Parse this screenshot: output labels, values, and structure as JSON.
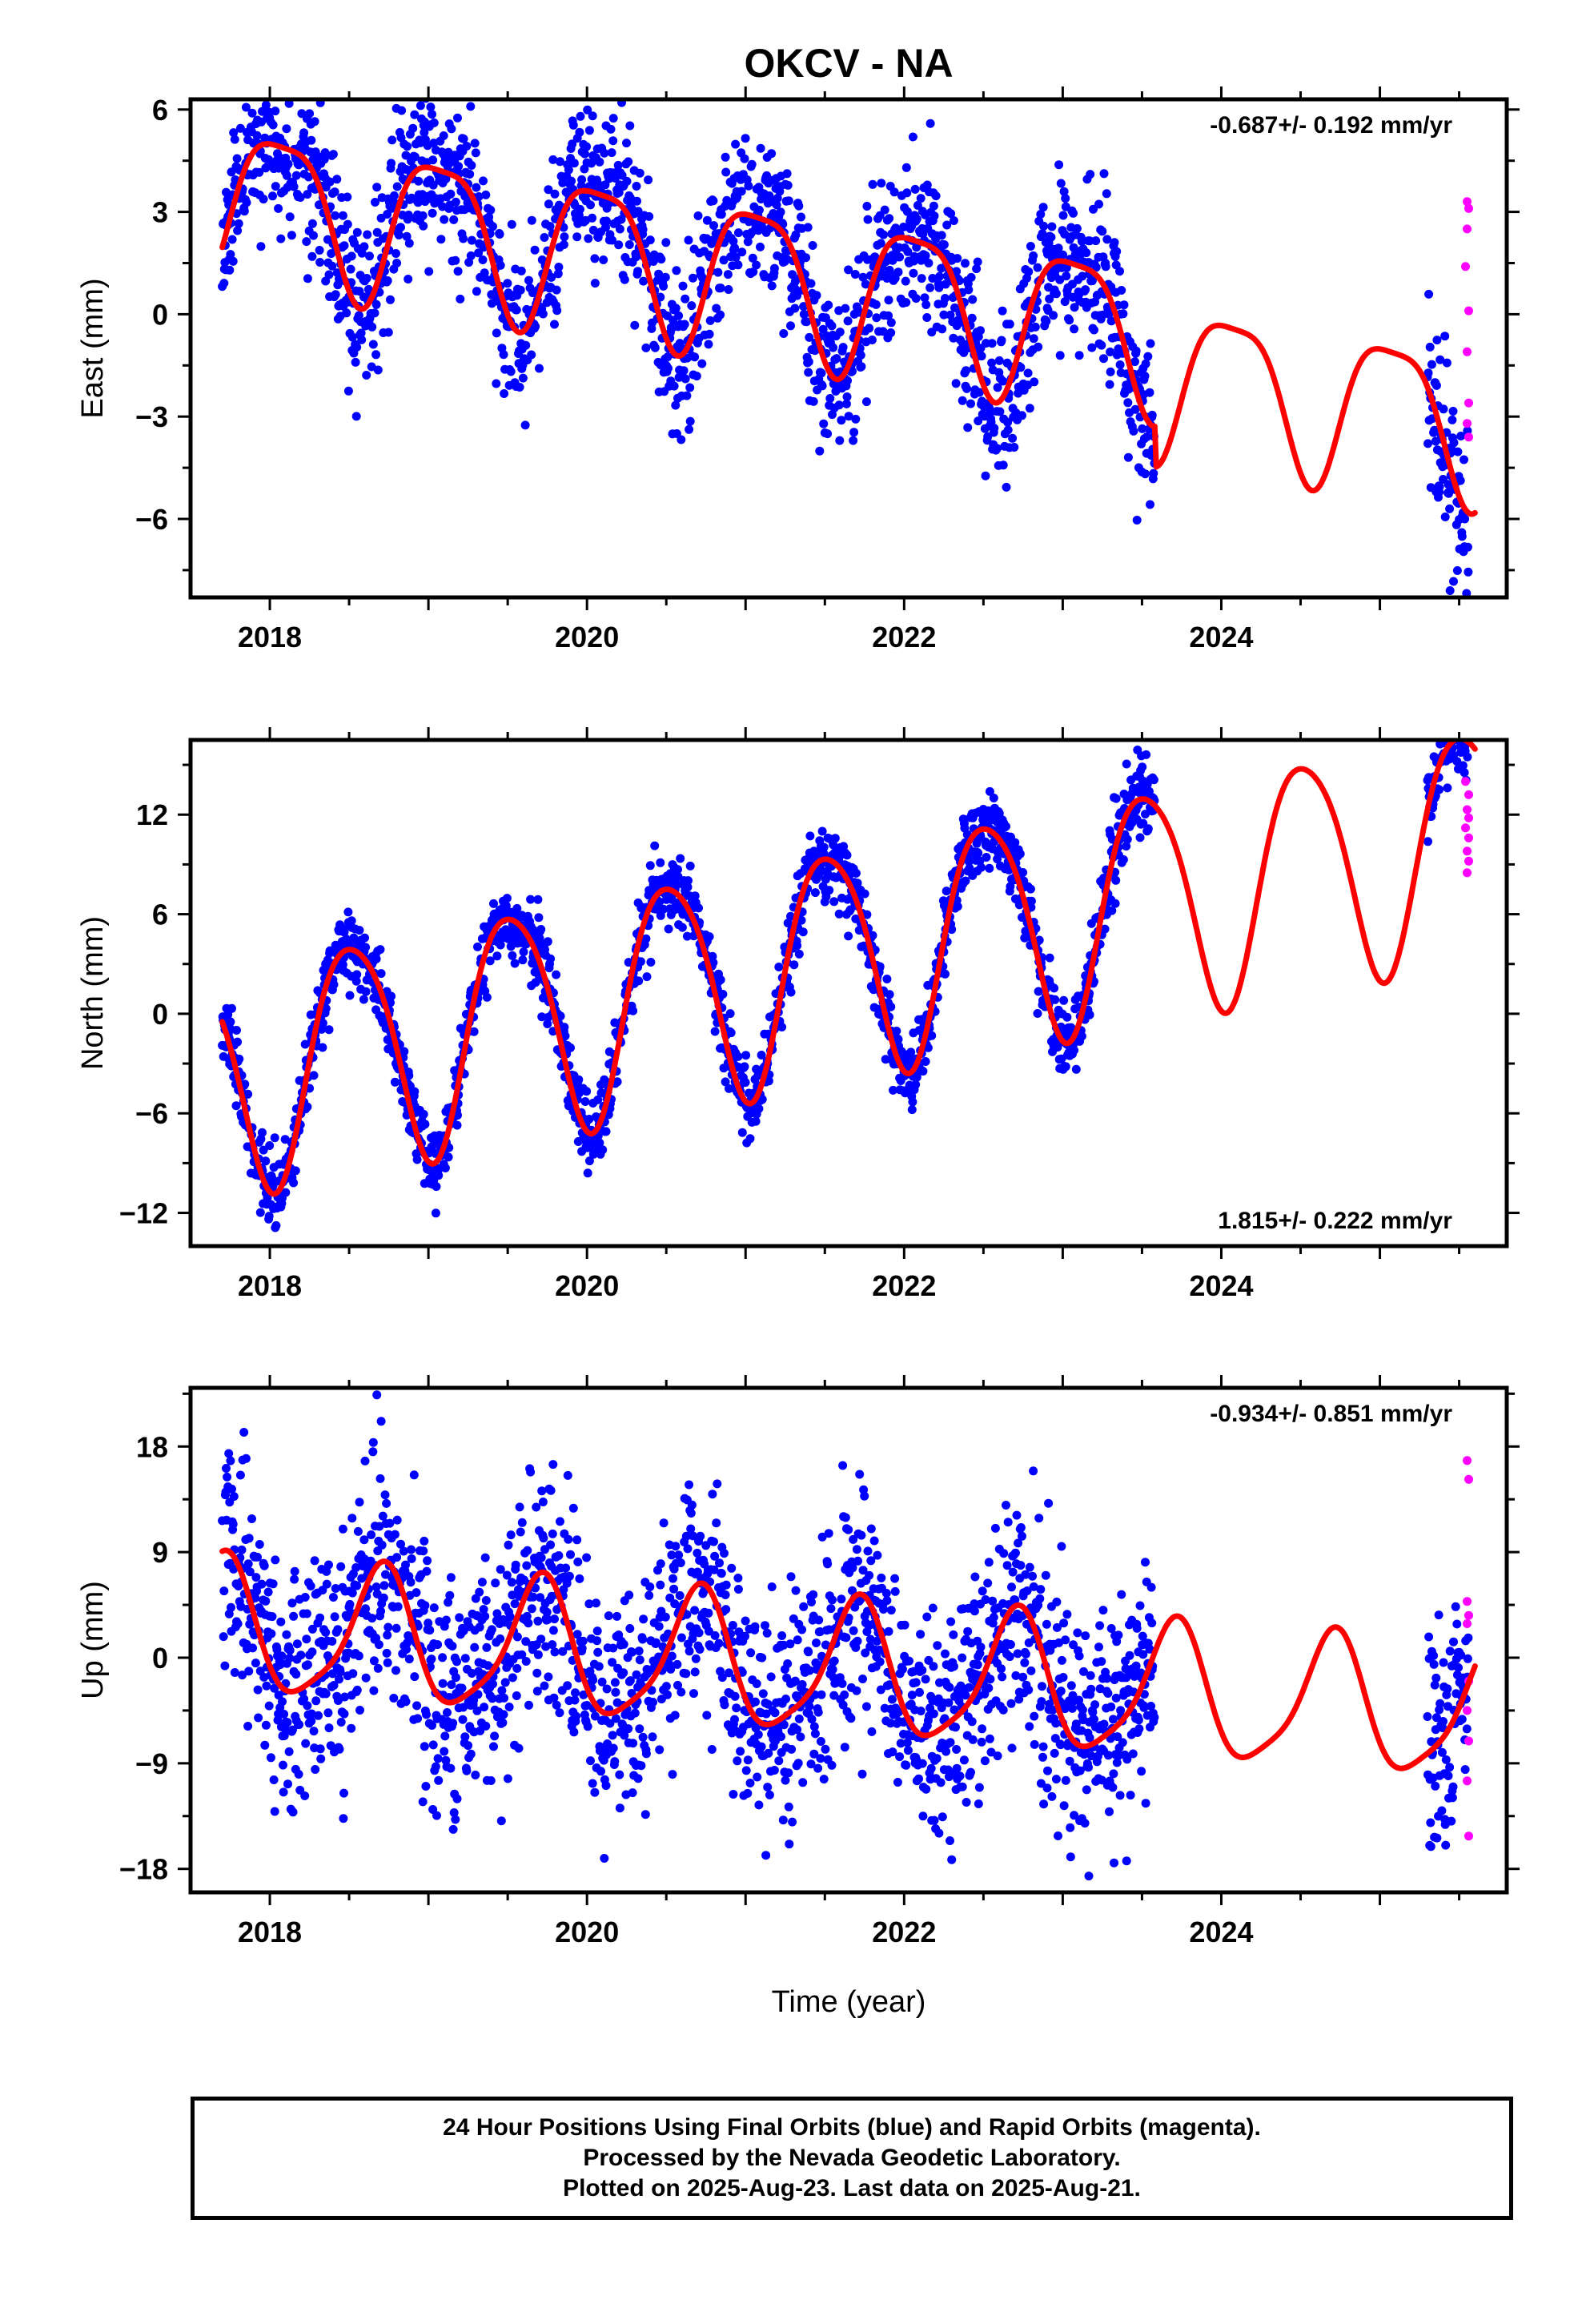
{
  "chart_data": {
    "type": "scatter",
    "title": "OKCV - NA",
    "xlabel": "Time (year)",
    "xlim": [
      2017.5,
      2025.8
    ],
    "x_ticks": [
      "2018",
      "2020",
      "2022",
      "2024"
    ],
    "colors": {
      "final": "#0000ff",
      "rapid": "#ff00ff",
      "model": "#ff0000"
    },
    "panels": [
      {
        "id": "east",
        "ylabel": "East (mm)",
        "ylim": [
          -8.3,
          6.3
        ],
        "y_ticks": [
          6,
          3,
          0,
          -3,
          -6
        ],
        "y_tick_labels": [
          "6",
          "3",
          "0",
          "−3",
          "−6"
        ],
        "rate": "-0.687+/- 0.192 mm/yr",
        "rate_position": "top-right",
        "model": {
          "offset": 3.5,
          "slope": -0.687,
          "annual_amp": 2.2,
          "annual_phase": 0.07,
          "semiannual_amp": 0.55,
          "semiannual_phase": 0.33,
          "jumps": [
            [
              2023.58,
              -1.2
            ]
          ],
          "noise": 1.2,
          "seed": 11
        },
        "rapid_points": [
          [
            2025.55,
            3.3
          ],
          [
            2025.56,
            3.1
          ],
          [
            2025.55,
            2.5
          ],
          [
            2025.54,
            1.4
          ],
          [
            2025.56,
            0.1
          ],
          [
            2025.55,
            -1.1
          ],
          [
            2025.56,
            -2.6
          ],
          [
            2025.55,
            -3.2
          ],
          [
            2025.56,
            -3.6
          ]
        ]
      },
      {
        "id": "north",
        "ylabel": "North (mm)",
        "ylim": [
          -14.0,
          16.5
        ],
        "y_ticks": [
          12,
          6,
          0,
          -6,
          -12
        ],
        "y_tick_labels": [
          "12",
          "6",
          "0",
          "−6",
          "−12"
        ],
        "rate": "1.815+/- 0.222 mm/yr",
        "rate_position": "bottom-right",
        "model": {
          "offset": -3.7,
          "slope": 1.815,
          "annual_amp": 6.9,
          "annual_phase": 0.52,
          "semiannual_amp": 0.9,
          "semiannual_phase": 0.3,
          "jumps": [
            [
              2023.58,
              0.0
            ]
          ],
          "noise": 1.1,
          "seed": 23
        },
        "rapid_points": [
          [
            2025.54,
            14.0
          ],
          [
            2025.56,
            13.2
          ],
          [
            2025.55,
            12.3
          ],
          [
            2025.56,
            11.8
          ],
          [
            2025.54,
            11.2
          ],
          [
            2025.56,
            10.6
          ],
          [
            2025.55,
            9.8
          ],
          [
            2025.56,
            9.2
          ],
          [
            2025.55,
            8.5
          ]
        ]
      },
      {
        "id": "up",
        "ylabel": "Up (mm)",
        "ylim": [
          -20.0,
          23.0
        ],
        "y_ticks": [
          18,
          9,
          0,
          -9,
          -18
        ],
        "y_tick_labels": [
          "18",
          "9",
          "0",
          "−9",
          "−18"
        ],
        "rate": "-0.934+/- 0.851 mm/yr",
        "rate_position": "top-right",
        "model": {
          "offset": 2.5,
          "slope": -0.934,
          "annual_amp": 5.6,
          "annual_phase": 0.7,
          "semiannual_amp": 1.2,
          "semiannual_phase": 0.25,
          "jumps": [
            [
              2023.58,
              0.0
            ]
          ],
          "noise": 4.8,
          "seed": 37
        },
        "rapid_points": [
          [
            2025.55,
            16.8
          ],
          [
            2025.56,
            15.2
          ],
          [
            2025.55,
            4.8
          ],
          [
            2025.56,
            3.6
          ],
          [
            2025.55,
            2.9
          ],
          [
            2025.56,
            -2.0
          ],
          [
            2025.55,
            -4.5
          ],
          [
            2025.56,
            -7.1
          ],
          [
            2025.55,
            -10.5
          ],
          [
            2025.56,
            -15.2
          ]
        ]
      }
    ],
    "data_segments": [
      [
        2017.7,
        2023.58
      ],
      [
        2025.3,
        2025.56
      ]
    ],
    "model_span": [
      2017.7,
      2025.6
    ]
  },
  "footer": {
    "line1": "24 Hour Positions Using Final Orbits (blue) and Rapid Orbits (magenta).",
    "line2": "Processed by the Nevada Geodetic Laboratory.",
    "line3": "Plotted on 2025-Aug-23. Last data on 2025-Aug-21."
  }
}
